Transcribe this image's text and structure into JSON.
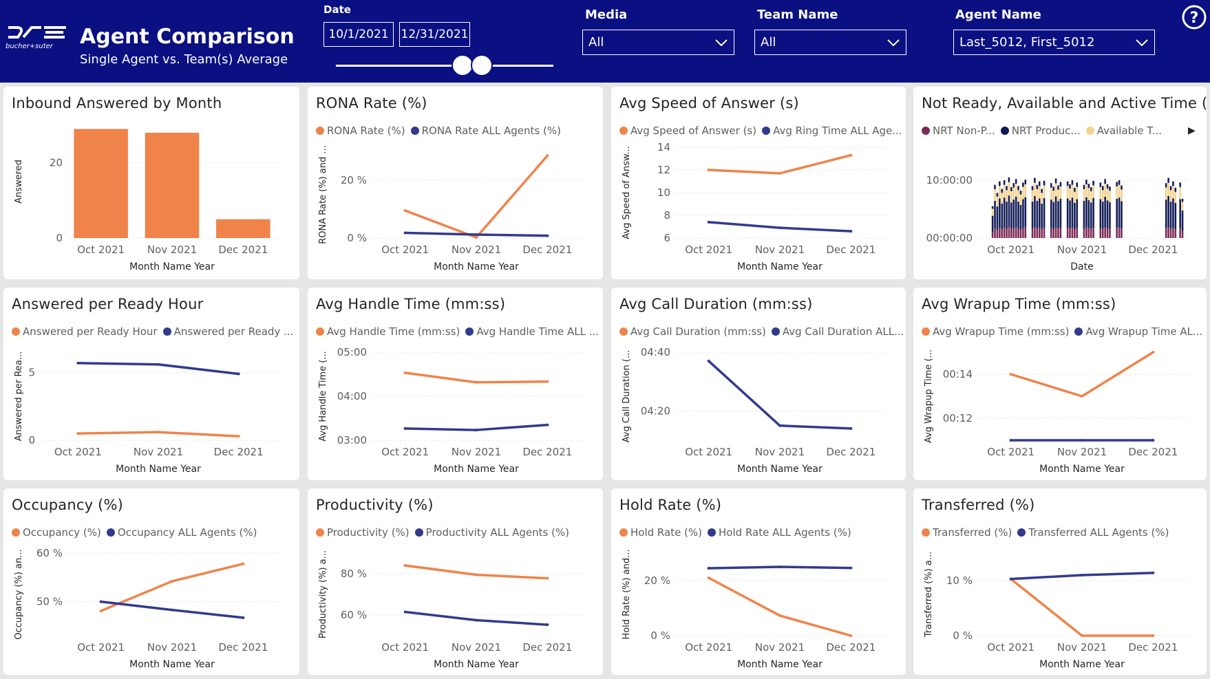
{
  "header": {
    "logo_text": "bucher+suter",
    "title": "Agent Comparison",
    "subtitle": "Single Agent vs. Team(s) Average",
    "date_label": "Date",
    "date_from": "10/1/2021",
    "date_to": "12/31/2021",
    "media_label": "Media",
    "media_value": "All",
    "team_label": "Team Name",
    "team_value": "All",
    "agent_label": "Agent Name",
    "agent_value": "Last_5012, First_5012",
    "help_icon": "help-icon"
  },
  "colors": {
    "header_bg": "#0a0f82",
    "orange": "#f0834a",
    "navy": "#323a8e",
    "nrt_nonprod": "#7c2a55",
    "nrt_prod": "#101a54",
    "available": "#f4d28e"
  },
  "chart_data": [
    {
      "id": "inbound",
      "type": "bar",
      "title": "Inbound Answered by Month",
      "legend": [],
      "xlabel": "Month Name Year",
      "ylabel": "Answered",
      "categories": [
        "Oct 2021",
        "Nov 2021",
        "Dec 2021"
      ],
      "series": [
        {
          "name": "Answered",
          "color": "#f0834a",
          "values": [
            29,
            28,
            5
          ]
        }
      ],
      "ylim": [
        0,
        30
      ],
      "yticks": [
        {
          "v": 0,
          "t": "0"
        },
        {
          "v": 20,
          "t": "20"
        }
      ]
    },
    {
      "id": "rona",
      "type": "line",
      "title": "RONA Rate (%)",
      "legend": [
        {
          "label": "RONA Rate (%)",
          "color": "#f0834a"
        },
        {
          "label": "RONA Rate ALL Agents (%)",
          "color": "#323a8e"
        }
      ],
      "xlabel": "Month Name Year",
      "ylabel": "RONA Rate (%) and ...",
      "categories": [
        "Oct 2021",
        "Nov 2021",
        "Dec 2021"
      ],
      "series": [
        {
          "name": "RONA Rate (%)",
          "color": "#f0834a",
          "values": [
            9.5,
            0.2,
            28.5
          ]
        },
        {
          "name": "RONA Rate ALL Agents (%)",
          "color": "#323a8e",
          "values": [
            1.8,
            1.2,
            0.8
          ]
        }
      ],
      "ylim": [
        0,
        30
      ],
      "yticks": [
        {
          "v": 0,
          "t": "0 %"
        },
        {
          "v": 20,
          "t": "20 %"
        }
      ]
    },
    {
      "id": "asa",
      "type": "line",
      "title": "Avg Speed of Answer (s)",
      "legend": [
        {
          "label": "Avg Speed of Answer (s)",
          "color": "#f0834a"
        },
        {
          "label": "Avg Ring Time ALL Age...",
          "color": "#323a8e"
        }
      ],
      "xlabel": "Month Name Year",
      "ylabel": "Avg Speed of Answ...",
      "categories": [
        "Oct 2021",
        "Nov 2021",
        "Dec 2021"
      ],
      "series": [
        {
          "name": "Avg Speed of Answer (s)",
          "color": "#f0834a",
          "values": [
            12.0,
            11.7,
            13.3
          ]
        },
        {
          "name": "Avg Ring Time ALL Agents",
          "color": "#323a8e",
          "values": [
            7.4,
            6.9,
            6.6
          ]
        }
      ],
      "ylim": [
        6,
        14
      ],
      "yticks": [
        {
          "v": 6,
          "t": "6"
        },
        {
          "v": 8,
          "t": "8"
        },
        {
          "v": 10,
          "t": "10"
        },
        {
          "v": 12,
          "t": "12"
        },
        {
          "v": 14,
          "t": "14"
        }
      ]
    },
    {
      "id": "nrt",
      "type": "bar",
      "title": "Not Ready, Available and Active Time (...",
      "legend": [
        {
          "label": "NRT Non-P...",
          "color": "#7c2a55"
        },
        {
          "label": "NRT Produc...",
          "color": "#101a54"
        },
        {
          "label": "Available T...",
          "color": "#f4d28e"
        }
      ],
      "more": "▶",
      "xlabel": "Date",
      "ylabel": "",
      "categories": [
        "Oct 2021",
        "Nov 2021",
        "Dec 2021"
      ],
      "ylim": [
        0,
        15
      ],
      "yticks": [
        {
          "v": 0,
          "t": "00:00:00"
        },
        {
          "v": 10,
          "t": "10:00:00"
        }
      ],
      "day_start": 1,
      "day_end": 92,
      "days": [
        {
          "d": 8,
          "v": 5.5
        },
        {
          "d": 9,
          "v": 9.2
        },
        {
          "d": 10,
          "v": 7.8
        },
        {
          "d": 11,
          "v": 9.8
        },
        {
          "d": 12,
          "v": 8.5
        },
        {
          "d": 13,
          "v": 10.0
        },
        {
          "d": 14,
          "v": 9.0
        },
        {
          "d": 15,
          "v": 10.5
        },
        {
          "d": 16,
          "v": 8.8
        },
        {
          "d": 17,
          "v": 9.5
        },
        {
          "d": 18,
          "v": 10.2
        },
        {
          "d": 19,
          "v": 9.0
        },
        {
          "d": 20,
          "v": 8.2
        },
        {
          "d": 21,
          "v": 9.6
        },
        {
          "d": 22,
          "v": 10.1
        },
        {
          "d": 25,
          "v": 9.0
        },
        {
          "d": 26,
          "v": 10.4
        },
        {
          "d": 27,
          "v": 9.2
        },
        {
          "d": 28,
          "v": 9.8
        },
        {
          "d": 29,
          "v": 8.5
        },
        {
          "d": 30,
          "v": 9.9
        },
        {
          "d": 33,
          "v": 9.5
        },
        {
          "d": 34,
          "v": 8.9
        },
        {
          "d": 35,
          "v": 10.3
        },
        {
          "d": 36,
          "v": 9.1
        },
        {
          "d": 37,
          "v": 9.7
        },
        {
          "d": 40,
          "v": 9.8
        },
        {
          "d": 41,
          "v": 9.3
        },
        {
          "d": 42,
          "v": 10.0
        },
        {
          "d": 43,
          "v": 8.7
        },
        {
          "d": 44,
          "v": 9.6
        },
        {
          "d": 47,
          "v": 9.2
        },
        {
          "d": 48,
          "v": 10.1
        },
        {
          "d": 49,
          "v": 9.4
        },
        {
          "d": 50,
          "v": 8.8
        },
        {
          "d": 51,
          "v": 9.9
        },
        {
          "d": 54,
          "v": 9.6
        },
        {
          "d": 55,
          "v": 9.0
        },
        {
          "d": 56,
          "v": 10.2
        },
        {
          "d": 57,
          "v": 9.3
        },
        {
          "d": 58,
          "v": 8.9
        },
        {
          "d": 61,
          "v": 9.7
        },
        {
          "d": 62,
          "v": 10.0
        },
        {
          "d": 63,
          "v": 9.1
        },
        {
          "d": 82,
          "v": 9.5
        },
        {
          "d": 83,
          "v": 10.4
        },
        {
          "d": 84,
          "v": 9.0
        },
        {
          "d": 85,
          "v": 9.8
        },
        {
          "d": 86,
          "v": 8.7
        },
        {
          "d": 88,
          "v": 9.6
        },
        {
          "d": 89,
          "v": 6.8
        }
      ]
    },
    {
      "id": "aprh",
      "type": "line",
      "title": "Answered per Ready Hour",
      "legend": [
        {
          "label": "Answered per Ready Hour",
          "color": "#f0834a"
        },
        {
          "label": "Answered per Ready ...",
          "color": "#323a8e"
        }
      ],
      "xlabel": "Month Name Year",
      "ylabel": "Answered per Rea...",
      "categories": [
        "Oct 2021",
        "Nov 2021",
        "Dec 2021"
      ],
      "series": [
        {
          "name": "Answered per Ready Hour",
          "color": "#f0834a",
          "values": [
            0.5,
            0.6,
            0.3
          ]
        },
        {
          "name": "Answered per Ready Hour ALL",
          "color": "#323a8e",
          "values": [
            5.7,
            5.6,
            4.9
          ]
        }
      ],
      "ylim": [
        0,
        6.5
      ],
      "yticks": [
        {
          "v": 0,
          "t": "0"
        },
        {
          "v": 5,
          "t": "5"
        }
      ]
    },
    {
      "id": "aht",
      "type": "line",
      "title": "Avg Handle Time (mm:ss)",
      "legend": [
        {
          "label": "Avg Handle Time (mm:ss)",
          "color": "#f0834a"
        },
        {
          "label": "Avg Handle Time ALL ...",
          "color": "#323a8e"
        }
      ],
      "xlabel": "Month Name Year",
      "ylabel": "Avg Handle Time (...",
      "categories": [
        "Oct 2021",
        "Nov 2021",
        "Dec 2021"
      ],
      "series": [
        {
          "name": "Avg Handle Time (mm:ss)",
          "color": "#f0834a",
          "values": [
            272,
            259,
            260
          ]
        },
        {
          "name": "Avg Handle Time ALL Agents",
          "color": "#323a8e",
          "values": [
            196,
            194,
            201
          ]
        }
      ],
      "ylim": [
        180,
        300
      ],
      "yticks": [
        {
          "v": 180,
          "t": "03:00"
        },
        {
          "v": 240,
          "t": "04:00"
        },
        {
          "v": 300,
          "t": "05:00"
        }
      ]
    },
    {
      "id": "acd",
      "type": "line",
      "title": "Avg Call Duration (mm:ss)",
      "legend": [
        {
          "label": "Avg Call Duration (mm:ss)",
          "color": "#f0834a"
        },
        {
          "label": "Avg Call Duration ALL...",
          "color": "#323a8e"
        }
      ],
      "xlabel": "Month Name Year",
      "ylabel": "Avg Call Duration (...",
      "categories": [
        "Oct 2021",
        "Nov 2021",
        "Dec 2021"
      ],
      "series": [
        {
          "name": "Avg Call Duration ALL Agents",
          "color": "#323a8e",
          "values": [
            277,
            255,
            254
          ]
        }
      ],
      "ylim": [
        250,
        280
      ],
      "yticks": [
        {
          "v": 260,
          "t": "04:20"
        },
        {
          "v": 280,
          "t": "04:40"
        }
      ]
    },
    {
      "id": "awt",
      "type": "line",
      "title": "Avg Wrapup Time (mm:ss)",
      "legend": [
        {
          "label": "Avg Wrapup Time (mm:ss)",
          "color": "#f0834a"
        },
        {
          "label": "Avg Wrapup Time AL...",
          "color": "#323a8e"
        }
      ],
      "xlabel": "Month Name Year",
      "ylabel": "Avg Wrapup Time (...",
      "categories": [
        "Oct 2021",
        "Nov 2021",
        "Dec 2021"
      ],
      "series": [
        {
          "name": "Avg Wrapup Time (mm:ss)",
          "color": "#f0834a",
          "values": [
            14.0,
            13.0,
            15.0
          ]
        },
        {
          "name": "Avg Wrapup Time ALL Agents",
          "color": "#323a8e",
          "values": [
            11.0,
            11.0,
            11.0
          ]
        }
      ],
      "ylim": [
        11,
        15
      ],
      "yticks": [
        {
          "v": 12,
          "t": "00:12"
        },
        {
          "v": 14,
          "t": "00:14"
        }
      ]
    },
    {
      "id": "occ",
      "type": "line",
      "title": "Occupancy (%)",
      "legend": [
        {
          "label": "Occupancy (%)",
          "color": "#f0834a"
        },
        {
          "label": "Occupancy ALL Agents (%)",
          "color": "#323a8e"
        }
      ],
      "xlabel": "Month Name Year",
      "ylabel": "Occupancy (%) an...",
      "categories": [
        "Oct 2021",
        "Nov 2021",
        "Dec 2021"
      ],
      "series": [
        {
          "name": "Occupancy (%)",
          "color": "#f0834a",
          "values": [
            48.1,
            54.2,
            57.8
          ]
        },
        {
          "name": "Occupancy ALL Agents (%)",
          "color": "#323a8e",
          "values": [
            50.0,
            48.3,
            46.7
          ]
        }
      ],
      "ylim": [
        43,
        60
      ],
      "yticks": [
        {
          "v": 50,
          "t": "50 %"
        },
        {
          "v": 60,
          "t": "60 %"
        }
      ]
    },
    {
      "id": "prod",
      "type": "line",
      "title": "Productivity (%)",
      "legend": [
        {
          "label": "Productivity (%)",
          "color": "#f0834a"
        },
        {
          "label": "Productivity ALL Agents (%)",
          "color": "#323a8e"
        }
      ],
      "xlabel": "Month Name Year",
      "ylabel": "Productivity (%) a...",
      "categories": [
        "Oct 2021",
        "Nov 2021",
        "Dec 2021"
      ],
      "series": [
        {
          "name": "Productivity (%)",
          "color": "#f0834a",
          "values": [
            84.0,
            79.5,
            77.8
          ]
        },
        {
          "name": "Productivity ALL Agents (%)",
          "color": "#323a8e",
          "values": [
            61.5,
            57.5,
            55.3
          ]
        }
      ],
      "ylim": [
        50,
        90
      ],
      "yticks": [
        {
          "v": 60,
          "t": "60 %"
        },
        {
          "v": 80,
          "t": "80 %"
        }
      ]
    },
    {
      "id": "hold",
      "type": "line",
      "title": "Hold Rate (%)",
      "legend": [
        {
          "label": "Hold Rate (%)",
          "color": "#f0834a"
        },
        {
          "label": "Hold Rate ALL Agents (%)",
          "color": "#323a8e"
        }
      ],
      "xlabel": "Month Name Year",
      "ylabel": "Hold Rate (%) and...",
      "categories": [
        "Oct 2021",
        "Nov 2021",
        "Dec 2021"
      ],
      "series": [
        {
          "name": "Hold Rate (%)",
          "color": "#f0834a",
          "values": [
            21.0,
            7.3,
            0.0
          ]
        },
        {
          "name": "Hold Rate ALL Agents (%)",
          "color": "#323a8e",
          "values": [
            24.5,
            25.0,
            24.6
          ]
        }
      ],
      "ylim": [
        0,
        30
      ],
      "yticks": [
        {
          "v": 0,
          "t": "0 %"
        },
        {
          "v": 20,
          "t": "20 %"
        }
      ]
    },
    {
      "id": "xfer",
      "type": "line",
      "title": "Transferred (%)",
      "legend": [
        {
          "label": "Transferred (%)",
          "color": "#f0834a"
        },
        {
          "label": "Transferred ALL Agents (%)",
          "color": "#323a8e"
        }
      ],
      "xlabel": "Month Name Year",
      "ylabel": "Transferred (%) a...",
      "categories": [
        "Oct 2021",
        "Nov 2021",
        "Dec 2021"
      ],
      "series": [
        {
          "name": "Transferred (%)",
          "color": "#f0834a",
          "values": [
            10.3,
            0.0,
            0.0
          ]
        },
        {
          "name": "Transferred ALL Agents (%)",
          "color": "#323a8e",
          "values": [
            10.3,
            11.0,
            11.4
          ]
        }
      ],
      "ylim": [
        0,
        15
      ],
      "yticks": [
        {
          "v": 0,
          "t": "0 %"
        },
        {
          "v": 10,
          "t": "10 %"
        }
      ]
    }
  ]
}
